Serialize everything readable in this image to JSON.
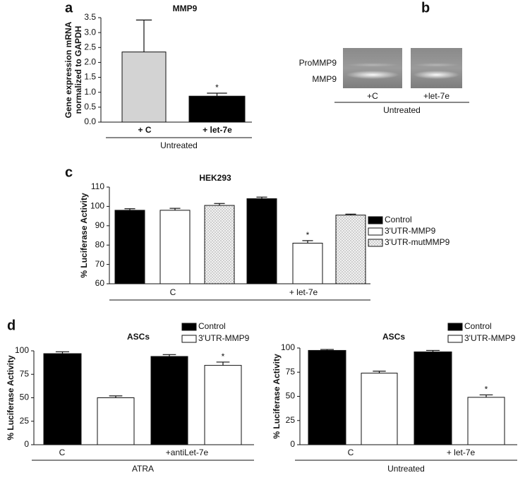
{
  "chart_data": [
    {
      "panel": "a",
      "type": "bar",
      "title": "MMP9",
      "ylabel": [
        "Gene expression mRNA",
        "normalized to GAPDH"
      ],
      "categories": [
        "+ C",
        "+ let-7e"
      ],
      "values": [
        2.35,
        0.87
      ],
      "errors": [
        1.07,
        0.1
      ],
      "colors": [
        "#d3d3d3",
        "#000000"
      ],
      "significance": [
        null,
        "*"
      ],
      "group": "Untreated",
      "ylim": [
        0,
        3.5
      ],
      "yticks": [
        {
          "value": 0,
          "label": "0.0"
        },
        0.5,
        {
          "value": 1,
          "label": "1.0"
        },
        1.5,
        {
          "value": 2,
          "label": "2.0"
        },
        2.5,
        {
          "value": 3,
          "label": "3.0"
        },
        3.5
      ]
    },
    {
      "panel": "b",
      "type": "blot",
      "bands": [
        "ProMMP9",
        "MMP9"
      ],
      "lanes": [
        "+C",
        "+let-7e"
      ],
      "group": "Untreated"
    },
    {
      "panel": "c",
      "type": "bar",
      "title": "HEK293",
      "ylabel": [
        "% Luciferase Activity"
      ],
      "categories": [
        "C",
        "+ let-7e"
      ],
      "group": "",
      "legend": "right",
      "series": [
        {
          "name": "Control",
          "color": "#000000",
          "values": [
            98,
            104
          ],
          "errors": [
            0.8,
            0.8
          ],
          "significance": [
            null,
            null
          ]
        },
        {
          "name": "3'UTR-MMP9",
          "color": "#ffffff",
          "values": [
            98,
            81
          ],
          "errors": [
            1,
            1.3
          ],
          "significance": [
            null,
            "*"
          ]
        },
        {
          "name": "3'UTR-mutMMP9",
          "color": "#f2f2f2",
          "pattern": "dots",
          "values": [
            100.5,
            95.5
          ],
          "errors": [
            1,
            0.5
          ],
          "significance": [
            null,
            null
          ]
        }
      ],
      "ylim": [
        60,
        110
      ],
      "yticks": [
        60,
        70,
        80,
        90,
        100,
        110
      ]
    },
    {
      "panel": "d",
      "type": "bar",
      "title": "ASCs",
      "ylabel": [
        "% Luciferase Activity"
      ],
      "categories": [
        "C",
        "+antiLet-7e"
      ],
      "group": "ATRA",
      "legend": "top",
      "series": [
        {
          "name": "Control",
          "color": "#000000",
          "values": [
            97,
            94
          ],
          "errors": [
            2,
            2
          ],
          "significance": [
            null,
            null
          ]
        },
        {
          "name": "3'UTR-MMP9",
          "color": "#ffffff",
          "values": [
            50,
            84.5
          ],
          "errors": [
            2,
            3.5
          ],
          "significance": [
            null,
            "*"
          ]
        }
      ],
      "ylim": [
        0,
        100
      ],
      "yticks": [
        0,
        25,
        50,
        75,
        100
      ]
    },
    {
      "type": "bar",
      "title": "ASCs",
      "ylabel": [
        "% Luciferase Activity"
      ],
      "categories": [
        "C",
        "+ let-7e"
      ],
      "group": "Untreated",
      "legend": "top",
      "series": [
        {
          "name": "Control",
          "color": "#000000",
          "values": [
            97.5,
            96
          ],
          "errors": [
            1,
            1.5
          ],
          "significance": [
            null,
            null
          ]
        },
        {
          "name": "3'UTR-MMP9",
          "color": "#ffffff",
          "values": [
            74,
            49
          ],
          "errors": [
            2,
            2.5
          ],
          "significance": [
            null,
            "*"
          ]
        }
      ],
      "ylim": [
        0,
        100
      ],
      "yticks": [
        0,
        25,
        50,
        75,
        100
      ]
    }
  ]
}
